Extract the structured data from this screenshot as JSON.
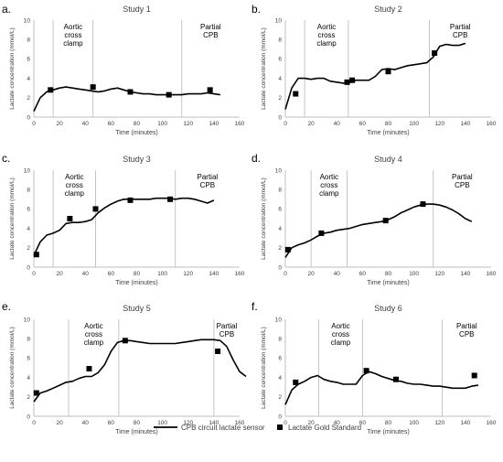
{
  "figure": {
    "legend": [
      {
        "label": "CPB circuit lactate sensor",
        "marker": "line"
      },
      {
        "label": "Lactate Gold Standard",
        "marker": "square"
      }
    ],
    "colors": {
      "series": "#000000",
      "axis": "#bfbfbf",
      "text": "#404040",
      "divider": "#bfbfbf"
    }
  },
  "chart_data": [
    {
      "type": "line",
      "panel_letter": "a.",
      "title": "Study 1",
      "xlabel": "Time (minutes)",
      "ylabel": "Lactate concentration (mmol/L)",
      "xlim": [
        0,
        160
      ],
      "ylim": [
        0,
        10
      ],
      "xticks": [
        0,
        20,
        40,
        60,
        80,
        100,
        120,
        140,
        160
      ],
      "yticks": [
        0,
        2,
        4,
        6,
        8,
        10
      ],
      "phases": [
        {
          "x": 15,
          "label": "Aortic\ncross\nclamp"
        },
        {
          "x": 46
        },
        {
          "x": 115,
          "label": "Partial\nCPB"
        }
      ],
      "series": [
        {
          "name": "CPB circuit lactate sensor",
          "style": "line",
          "x": [
            0,
            5,
            10,
            15,
            20,
            25,
            30,
            35,
            40,
            45,
            50,
            55,
            60,
            65,
            70,
            75,
            80,
            85,
            90,
            95,
            100,
            105,
            110,
            115,
            120,
            125,
            130,
            135,
            140,
            145
          ],
          "y": [
            0.6,
            2.0,
            2.6,
            2.8,
            3.0,
            3.1,
            3.0,
            2.9,
            2.8,
            2.7,
            2.6,
            2.7,
            2.9,
            3.0,
            2.8,
            2.6,
            2.5,
            2.4,
            2.4,
            2.3,
            2.3,
            2.3,
            2.3,
            2.3,
            2.4,
            2.4,
            2.4,
            2.5,
            2.4,
            2.3
          ]
        },
        {
          "name": "Lactate Gold Standard",
          "style": "marker",
          "x": [
            13,
            46,
            75,
            105,
            137
          ],
          "y": [
            2.8,
            3.1,
            2.6,
            2.3,
            2.8
          ]
        }
      ]
    },
    {
      "type": "line",
      "panel_letter": "b.",
      "title": "Study 2",
      "xlabel": "Time (minutes)",
      "ylabel": "Lactate concentration (mmol/L)",
      "xlim": [
        0,
        160
      ],
      "ylim": [
        0,
        10
      ],
      "xticks": [
        0,
        20,
        40,
        60,
        80,
        100,
        120,
        140,
        160
      ],
      "yticks": [
        0,
        2,
        4,
        6,
        8,
        10
      ],
      "phases": [
        {
          "x": 15,
          "label": "Aortic\ncross\nclamp"
        },
        {
          "x": 49
        },
        {
          "x": 112,
          "label": "Partial\nCPB"
        }
      ],
      "series": [
        {
          "name": "CPB circuit lactate sensor",
          "style": "line",
          "x": [
            0,
            5,
            10,
            15,
            20,
            25,
            30,
            35,
            40,
            45,
            50,
            55,
            60,
            65,
            70,
            75,
            80,
            85,
            90,
            95,
            100,
            105,
            110,
            115,
            120,
            125,
            130,
            135,
            140
          ],
          "y": [
            0.8,
            3.0,
            4.0,
            4.0,
            3.9,
            4.0,
            4.0,
            3.7,
            3.6,
            3.5,
            3.6,
            3.8,
            3.8,
            3.8,
            4.2,
            4.9,
            5.0,
            4.9,
            5.1,
            5.3,
            5.4,
            5.5,
            5.6,
            6.2,
            7.3,
            7.5,
            7.4,
            7.4,
            7.6
          ]
        },
        {
          "name": "Lactate Gold Standard",
          "style": "marker",
          "x": [
            8,
            48,
            52,
            80,
            116
          ],
          "y": [
            2.4,
            3.6,
            3.8,
            4.7,
            6.6
          ]
        }
      ]
    },
    {
      "type": "line",
      "panel_letter": "c.",
      "title": "Study 3",
      "xlabel": "Time (minutes)",
      "ylabel": "Lactate concentration (mmol/L)",
      "xlim": [
        0,
        160
      ],
      "ylim": [
        0,
        10
      ],
      "xticks": [
        0,
        20,
        40,
        60,
        80,
        100,
        120,
        140,
        160
      ],
      "yticks": [
        0,
        2,
        4,
        6,
        8,
        10
      ],
      "phases": [
        {
          "x": 15,
          "label": "Aortic\ncross\nclamp"
        },
        {
          "x": 48
        },
        {
          "x": 110,
          "label": "Partial\nCPB"
        }
      ],
      "series": [
        {
          "name": "CPB circuit lactate sensor",
          "style": "line",
          "x": [
            0,
            5,
            10,
            15,
            20,
            25,
            30,
            35,
            40,
            45,
            50,
            55,
            60,
            65,
            70,
            75,
            80,
            85,
            90,
            95,
            100,
            105,
            110,
            115,
            120,
            125,
            130,
            135,
            140
          ],
          "y": [
            1.2,
            2.6,
            3.3,
            3.5,
            3.8,
            4.5,
            4.6,
            4.6,
            4.7,
            4.9,
            5.6,
            6.1,
            6.5,
            6.8,
            7.0,
            7.0,
            7.0,
            7.0,
            7.0,
            7.1,
            7.1,
            7.1,
            7.0,
            7.1,
            7.1,
            7.0,
            6.8,
            6.6,
            6.9
          ]
        },
        {
          "name": "Lactate Gold Standard",
          "style": "marker",
          "x": [
            2,
            28,
            48,
            75,
            106
          ],
          "y": [
            1.3,
            5.0,
            6.0,
            6.9,
            7.0
          ]
        }
      ]
    },
    {
      "type": "line",
      "panel_letter": "d.",
      "title": "Study 4",
      "xlabel": "Time (minutes)",
      "ylabel": "Lactate concentration (mmol/L)",
      "xlim": [
        0,
        160
      ],
      "ylim": [
        0,
        10
      ],
      "xticks": [
        0,
        20,
        40,
        60,
        80,
        100,
        120,
        140,
        160
      ],
      "yticks": [
        0,
        2,
        4,
        6,
        8,
        10
      ],
      "phases": [
        {
          "x": 20,
          "label": "Aortic\ncross\nclamp"
        },
        {
          "x": 48
        },
        {
          "x": 115,
          "label": "Partial\nCPB"
        }
      ],
      "series": [
        {
          "name": "CPB circuit lactate sensor",
          "style": "line",
          "x": [
            0,
            5,
            10,
            15,
            20,
            25,
            30,
            35,
            40,
            45,
            50,
            55,
            60,
            65,
            70,
            75,
            80,
            85,
            90,
            95,
            100,
            105,
            110,
            115,
            120,
            125,
            130,
            135,
            140,
            145
          ],
          "y": [
            1.0,
            2.0,
            2.3,
            2.5,
            2.8,
            3.2,
            3.5,
            3.6,
            3.8,
            3.9,
            4.0,
            4.2,
            4.4,
            4.5,
            4.6,
            4.7,
            4.9,
            5.2,
            5.6,
            5.9,
            6.2,
            6.4,
            6.5,
            6.5,
            6.4,
            6.2,
            5.9,
            5.5,
            5.0,
            4.7
          ]
        },
        {
          "name": "Lactate Gold Standard",
          "style": "marker",
          "x": [
            2,
            28,
            78,
            107
          ],
          "y": [
            1.8,
            3.5,
            4.8,
            6.5
          ]
        }
      ]
    },
    {
      "type": "line",
      "panel_letter": "e.",
      "title": "Study 5",
      "xlabel": "Time (minutes)",
      "ylabel": "Lactate concentration (mmol/L)",
      "xlim": [
        0,
        160
      ],
      "ylim": [
        0,
        10
      ],
      "xticks": [
        0,
        20,
        40,
        60,
        80,
        100,
        120,
        140,
        160
      ],
      "yticks": [
        0,
        2,
        4,
        6,
        8,
        10
      ],
      "phases": [
        {
          "x": 27,
          "label": "Aortic\ncross\nclamp"
        },
        {
          "x": 66
        },
        {
          "x": 140,
          "label": "Partial\nCPB"
        }
      ],
      "series": [
        {
          "name": "CPB circuit lactate sensor",
          "style": "line",
          "x": [
            0,
            5,
            10,
            15,
            20,
            25,
            30,
            35,
            40,
            45,
            50,
            55,
            60,
            65,
            70,
            75,
            80,
            85,
            90,
            95,
            100,
            105,
            110,
            115,
            120,
            125,
            130,
            135,
            140,
            145,
            150,
            155,
            160,
            165
          ],
          "y": [
            1.5,
            2.4,
            2.6,
            2.9,
            3.2,
            3.5,
            3.6,
            3.9,
            4.1,
            4.1,
            4.5,
            5.3,
            6.7,
            7.6,
            7.8,
            7.8,
            7.7,
            7.6,
            7.5,
            7.5,
            7.5,
            7.5,
            7.5,
            7.6,
            7.7,
            7.8,
            7.9,
            7.9,
            7.9,
            7.8,
            7.2,
            5.8,
            4.6,
            4.1
          ]
        },
        {
          "name": "Lactate Gold Standard",
          "style": "marker",
          "x": [
            2,
            43,
            71,
            143
          ],
          "y": [
            2.4,
            4.9,
            7.8,
            6.7
          ]
        }
      ]
    },
    {
      "type": "line",
      "panel_letter": "f.",
      "title": "Study 6",
      "xlabel": "Time (minutes)",
      "ylabel": "Lactate concentration (mmol/L)",
      "xlim": [
        0,
        160
      ],
      "ylim": [
        0,
        10
      ],
      "xticks": [
        0,
        20,
        40,
        60,
        80,
        100,
        120,
        140,
        160
      ],
      "yticks": [
        0,
        2,
        4,
        6,
        8,
        10
      ],
      "phases": [
        {
          "x": 26,
          "label": "Aortic\ncross\nclamp"
        },
        {
          "x": 60
        },
        {
          "x": 122,
          "label": "Partial\nCPB"
        }
      ],
      "series": [
        {
          "name": "CPB circuit lactate sensor",
          "style": "line",
          "x": [
            0,
            5,
            10,
            15,
            20,
            25,
            30,
            35,
            40,
            45,
            50,
            55,
            60,
            65,
            70,
            75,
            80,
            85,
            90,
            95,
            100,
            105,
            110,
            115,
            120,
            125,
            130,
            135,
            140,
            145,
            150
          ],
          "y": [
            1.2,
            2.7,
            3.3,
            3.6,
            4.0,
            4.2,
            3.8,
            3.6,
            3.5,
            3.3,
            3.3,
            3.3,
            4.2,
            4.6,
            4.4,
            4.1,
            3.9,
            3.7,
            3.6,
            3.4,
            3.3,
            3.3,
            3.2,
            3.1,
            3.1,
            3.0,
            2.9,
            2.9,
            2.9,
            3.1,
            3.2
          ]
        },
        {
          "name": "Lactate Gold Standard",
          "style": "marker",
          "x": [
            8,
            63,
            86,
            147
          ],
          "y": [
            3.5,
            4.7,
            3.8,
            4.2
          ]
        }
      ]
    }
  ]
}
